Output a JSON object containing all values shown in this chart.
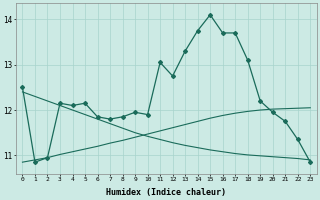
{
  "xlabel": "Humidex (Indice chaleur)",
  "bg_color": "#cceae4",
  "grid_color": "#a8d4cc",
  "line_color": "#1a6b5a",
  "x_values": [
    0,
    1,
    2,
    3,
    4,
    5,
    6,
    7,
    8,
    9,
    10,
    11,
    12,
    13,
    14,
    15,
    16,
    17,
    18,
    19,
    20,
    21,
    22,
    23
  ],
  "main_line": [
    12.5,
    10.85,
    10.95,
    12.15,
    12.1,
    12.15,
    11.85,
    11.8,
    11.85,
    11.95,
    11.9,
    13.05,
    12.75,
    13.3,
    13.75,
    14.1,
    13.7,
    13.7,
    13.1,
    12.2,
    11.95,
    11.75,
    11.35,
    10.85
  ],
  "smooth_line1": [
    10.85,
    10.9,
    10.95,
    11.02,
    11.08,
    11.14,
    11.2,
    11.27,
    11.33,
    11.4,
    11.47,
    11.54,
    11.61,
    11.68,
    11.75,
    11.82,
    11.88,
    11.93,
    11.97,
    12.0,
    12.02,
    12.03,
    12.04,
    12.05
  ],
  "smooth_line2": [
    12.4,
    12.3,
    12.2,
    12.1,
    12.0,
    11.9,
    11.8,
    11.7,
    11.6,
    11.5,
    11.42,
    11.35,
    11.28,
    11.22,
    11.17,
    11.12,
    11.08,
    11.04,
    11.01,
    10.99,
    10.97,
    10.95,
    10.93,
    10.9
  ],
  "ylim": [
    10.6,
    14.35
  ],
  "yticks": [
    11,
    12,
    13,
    14
  ],
  "xticks": [
    0,
    1,
    2,
    3,
    4,
    5,
    6,
    7,
    8,
    9,
    10,
    11,
    12,
    13,
    14,
    15,
    16,
    17,
    18,
    19,
    20,
    21,
    22,
    23
  ]
}
